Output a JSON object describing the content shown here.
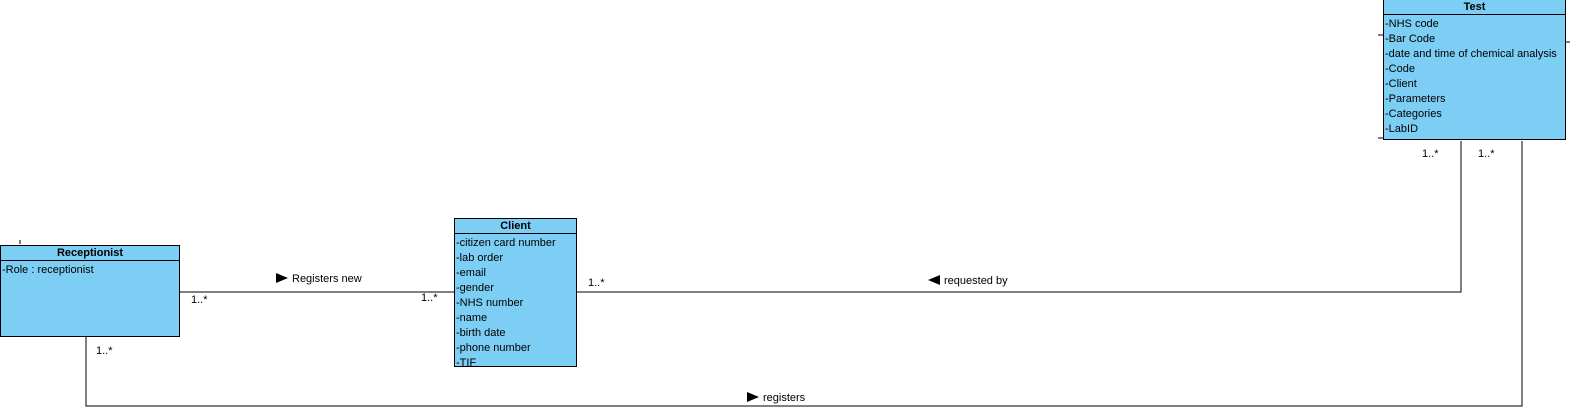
{
  "classes": {
    "receptionist": {
      "name": "Receptionist",
      "attributes": [
        "-Role : receptionist"
      ]
    },
    "client": {
      "name": "Client",
      "attributes": [
        "-citizen card number",
        "-lab order",
        "-email",
        "-gender",
        "-NHS number",
        "-name",
        "-birth date",
        "-phone number",
        "-TIF"
      ]
    },
    "test": {
      "name": "Test",
      "attributes": [
        "-NHS code",
        "-Bar Code",
        "-date and time of chemical analysis",
        "-Code",
        "-Client",
        "-Parameters",
        "-Categories",
        "-LabID"
      ]
    }
  },
  "associations": {
    "registers_new": {
      "label": "Registers new",
      "direction": "right",
      "source_multiplicity": "1..*",
      "target_multiplicity": "1..*"
    },
    "requested_by": {
      "label": "requested by",
      "direction": "left",
      "client_multiplicity": "1..*",
      "test_multiplicity": "1..*"
    },
    "registers": {
      "label": "registers",
      "direction": "right",
      "receptionist_multiplicity": "1..*",
      "test_multiplicity": "1..*"
    }
  }
}
